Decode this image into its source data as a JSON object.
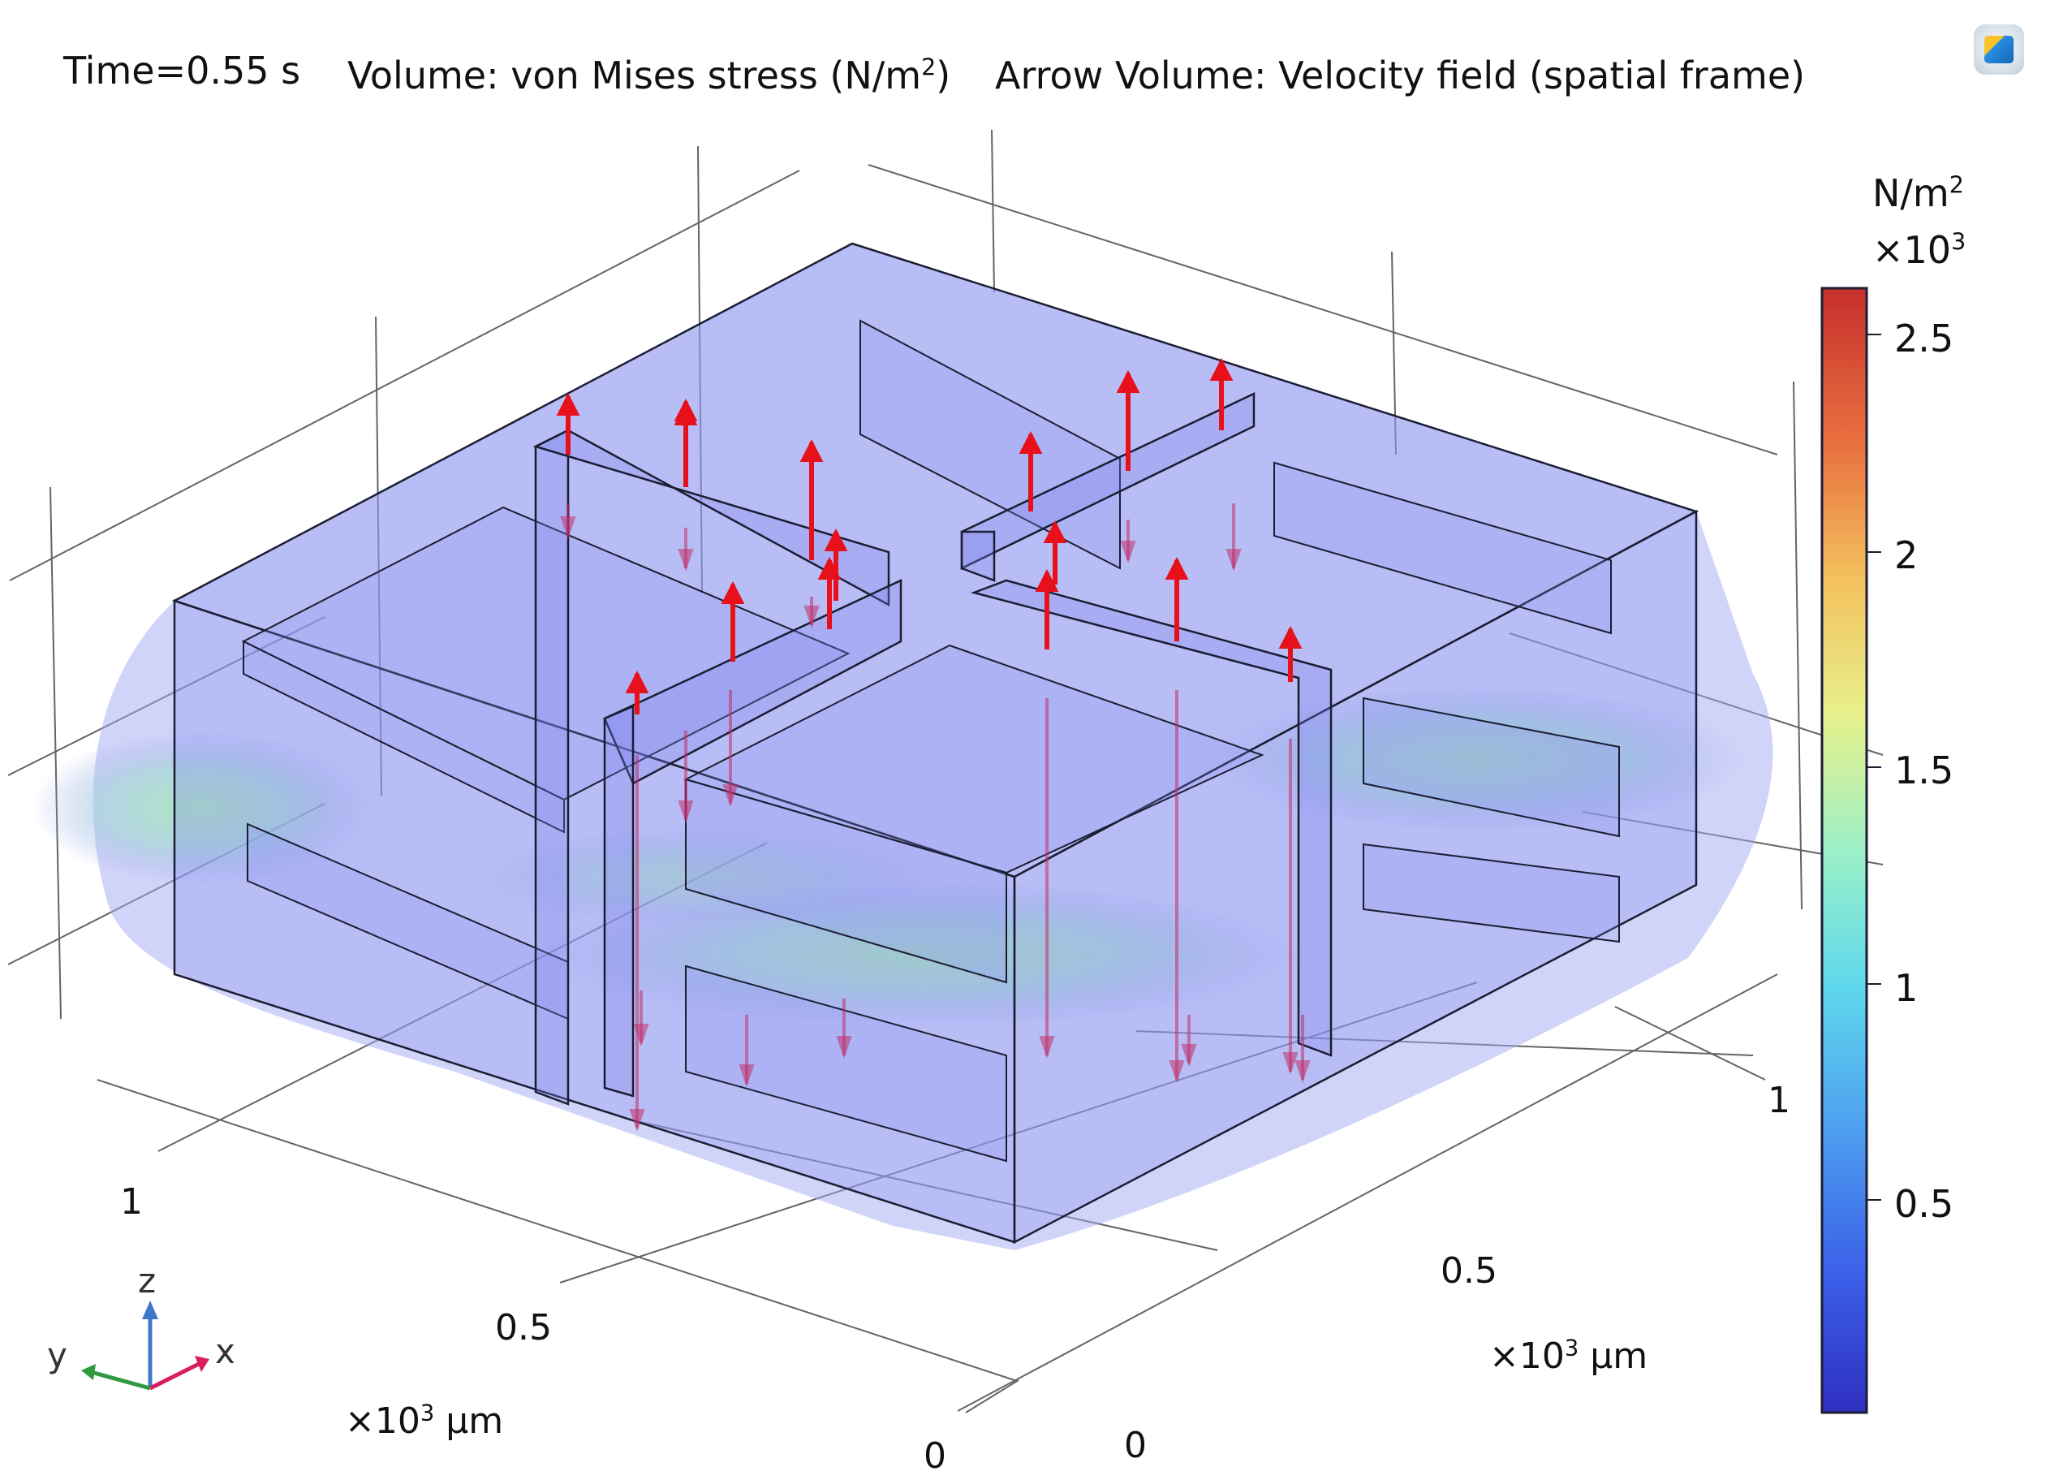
{
  "header": {
    "time_label": "Time=0.55 s",
    "volume_prefix": "Volume: von Mises stress (N/m",
    "volume_sup": "2",
    "volume_suffix": ")",
    "arrow_label": "Arrow Volume: Velocity field (spatial frame)"
  },
  "colorbar": {
    "unit_main": "N/m",
    "unit_sup": "2",
    "scale_main": "×10",
    "scale_sup": "3",
    "ticks": [
      "2.5",
      "2",
      "1.5",
      "1",
      "0.5"
    ],
    "colors": [
      "#2e2fbf",
      "#3b5ee8",
      "#4d9ef0",
      "#5fd8ec",
      "#9bf0c6",
      "#e7f08c",
      "#f3c25e",
      "#e9713f",
      "#c62f2c"
    ]
  },
  "axes": {
    "left_ticks": [
      "1",
      "0.5",
      "0"
    ],
    "right_ticks": [
      "1",
      "0.5",
      "0"
    ],
    "left_unit_main": "×10",
    "left_unit_sup": "3",
    "left_unit_suffix": " µm",
    "right_unit_main": "×10",
    "right_unit_sup": "3",
    "right_unit_suffix": " µm"
  },
  "triad": {
    "z": "z",
    "y": "y",
    "x": "x"
  },
  "colors": {
    "arrow": "#e8101a",
    "edge": "#1b1d33",
    "volume_fill": "#7b82ee"
  }
}
